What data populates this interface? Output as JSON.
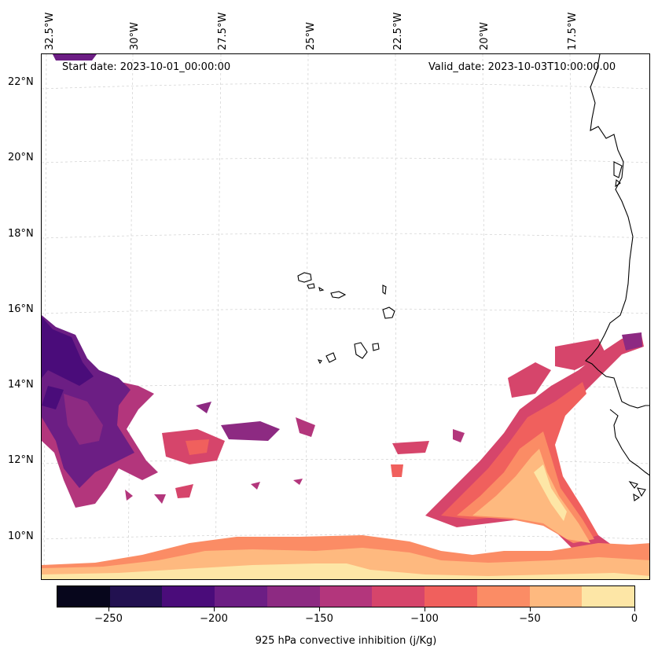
{
  "map": {
    "lon_labels": [
      "32.5°W",
      "30°W",
      "27.5°W",
      "25°W",
      "22.5°W",
      "20°W",
      "17.5°W"
    ],
    "lat_labels": [
      "22°N",
      "20°N",
      "18°N",
      "16°N",
      "14°N",
      "12°N",
      "10°N"
    ],
    "start_date": "Start date: 2023-10-01_00:00:00",
    "valid_date": "Valid_date: 2023-10-03T10:00:00.00",
    "colors": {
      "coastline": "#000000",
      "grid": "#cccccc"
    }
  },
  "colorbar": {
    "title": "925 hPa convective inhibition (j/Kg)",
    "tick_labels": [
      "−250",
      "−200",
      "−150",
      "−100",
      "−50",
      "0"
    ],
    "tick_values": [
      -250,
      -200,
      -150,
      -100,
      -50,
      0
    ],
    "range": [
      -275,
      0
    ],
    "colors": [
      "#07061c",
      "#221150",
      "#4a0c7a",
      "#6c1e84",
      "#8d2a82",
      "#b3367c",
      "#d6456b",
      "#f0605d",
      "#fb8c65",
      "#feb97f",
      "#fde6a6"
    ]
  }
}
